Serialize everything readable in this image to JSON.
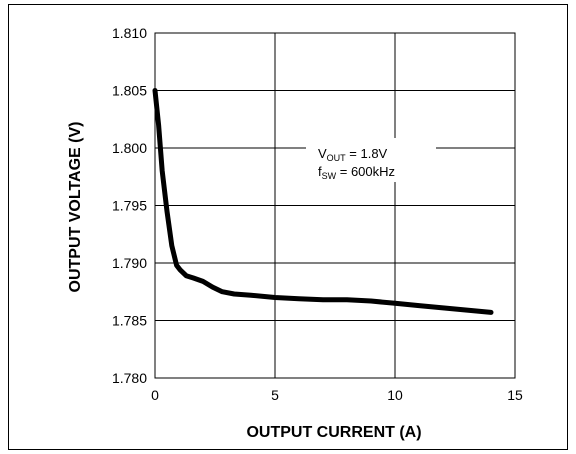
{
  "chart_data": {
    "type": "line",
    "title": "",
    "xlabel": "OUTPUT CURRENT (A)",
    "ylabel": "OUTPUT VOLTAGE (V)",
    "xlim": [
      0,
      15
    ],
    "ylim": [
      1.78,
      1.81
    ],
    "x_ticks": [
      "0",
      "5",
      "10",
      "15"
    ],
    "y_ticks": [
      "1.780",
      "1.785",
      "1.790",
      "1.795",
      "1.800",
      "1.805",
      "1.810"
    ],
    "grid": true,
    "legend": "none",
    "annotation": {
      "line1_main": "V",
      "line1_sub": "OUT",
      "line1_rest": " = 1.8V",
      "line2_main": "f",
      "line2_sub": "SW",
      "line2_rest": " = 600kHz"
    },
    "series": [
      {
        "x": [
          0,
          0.15,
          0.3,
          0.5,
          0.7,
          0.9,
          1.05,
          1.3,
          1.6,
          2.0,
          2.4,
          2.8,
          3.3,
          4.0,
          5.0,
          6.0,
          7.0,
          8.0,
          9.0,
          10.0,
          11.0,
          12.0,
          13.0,
          14.0
        ],
        "y": [
          1.805,
          1.802,
          1.798,
          1.7945,
          1.7915,
          1.7898,
          1.7894,
          1.7889,
          1.7887,
          1.7884,
          1.7879,
          1.7875,
          1.7873,
          1.7872,
          1.787,
          1.7869,
          1.7868,
          1.7868,
          1.7867,
          1.7865,
          1.7863,
          1.7861,
          1.7859,
          1.7857
        ]
      }
    ]
  }
}
